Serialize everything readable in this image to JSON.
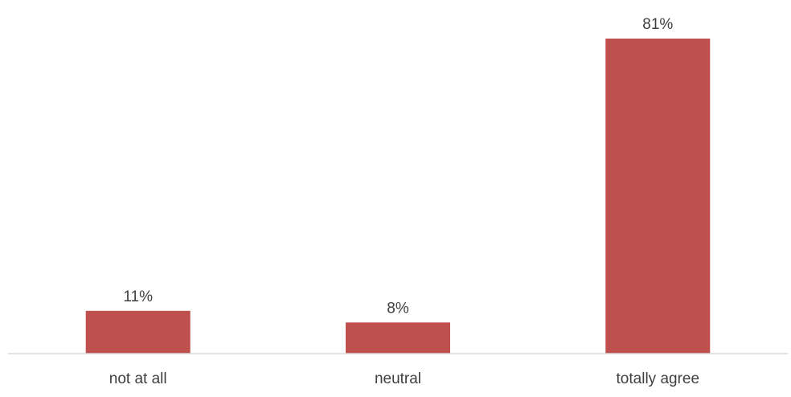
{
  "chart_data": {
    "type": "bar",
    "categories": [
      "not at all",
      "neutral",
      "totally agree"
    ],
    "values": [
      11,
      8,
      81
    ],
    "value_labels": [
      "11%",
      "8%",
      "81%"
    ],
    "title": "",
    "xlabel": "",
    "ylabel": "",
    "ylim": [
      0,
      81
    ],
    "grid": false,
    "legend": "none",
    "colors": {
      "bar": "#c0504d",
      "axis": "#d9d9d9",
      "text": "#404040"
    }
  }
}
